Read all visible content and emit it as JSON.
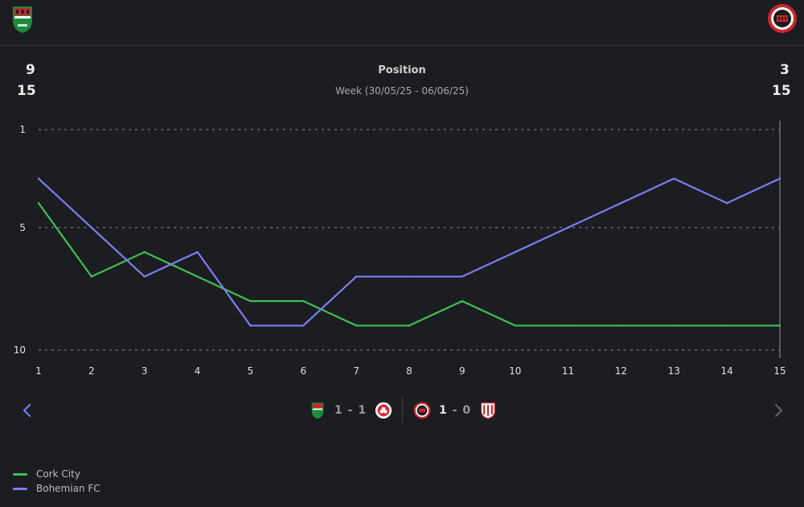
{
  "header": {
    "home_team_crest": "cork-city-crest",
    "away_team_crest": "bohemian-fc-crest",
    "home_position": "9",
    "home_total": "15",
    "away_position": "3",
    "away_total": "15",
    "title": "Position",
    "subtitle": "Week (30/05/25 - 06/06/25)"
  },
  "chart_data": {
    "type": "line",
    "title": "Position",
    "subtitle": "Week (30/05/25 - 06/06/25)",
    "x": [
      1,
      2,
      3,
      4,
      5,
      6,
      7,
      8,
      9,
      10,
      11,
      12,
      13,
      14,
      15
    ],
    "y_reversed": true,
    "ylim": [
      1,
      10
    ],
    "yticks": [
      1,
      5,
      10
    ],
    "grid": "dashed-horizontal",
    "series": [
      {
        "name": "Cork City",
        "color": "#3ec152",
        "values": [
          4,
          7,
          6,
          7,
          8,
          8,
          9,
          9,
          8,
          9,
          9,
          9,
          9,
          9,
          9
        ]
      },
      {
        "name": "Bohemian FC",
        "color": "#7b7ef2",
        "values": [
          3,
          5,
          7,
          6,
          9,
          9,
          7,
          7,
          7,
          6,
          5,
          4,
          3,
          4,
          3
        ]
      }
    ]
  },
  "matches": [
    {
      "home_icon": "cork-city-crest",
      "score_home": "1",
      "score_sep": "-",
      "score_away": "1",
      "away_icon": "shamrock-rovers-crest"
    },
    {
      "home_icon": "bohemian-fc-crest",
      "score_home": "1",
      "score_sep": "-",
      "score_away": "0",
      "away_icon": "derry-city-crest"
    }
  ],
  "nav": {
    "prev_icon": "chevron-left-icon",
    "next_icon": "chevron-right-icon"
  },
  "colors": {
    "background": "#1b1d21",
    "home": "#3ec152",
    "away": "#7b7ef2"
  }
}
